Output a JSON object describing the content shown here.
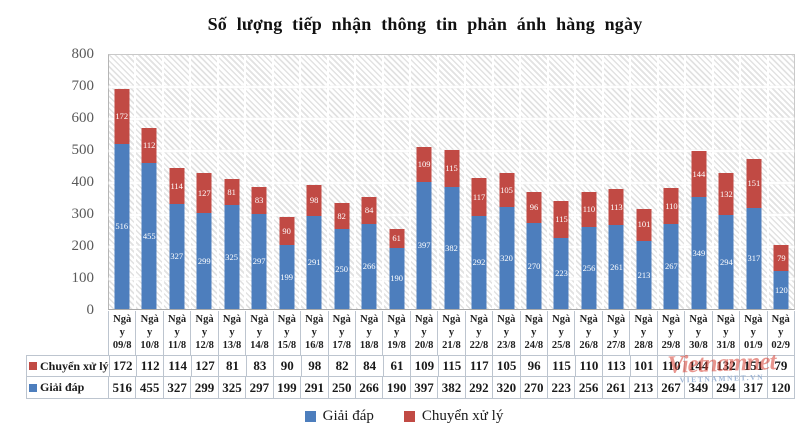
{
  "title": "Số lượng tiếp nhận thông tin phản ánh hàng ngày",
  "colors": {
    "giai_dap": "#4D7EBD",
    "chuyen_xu_ly": "#C14A44",
    "grid_border": "#bdc5cf",
    "axis_text": "#595959"
  },
  "chart_data": {
    "type": "bar",
    "stacked": true,
    "title": "Số lượng tiếp nhận thông tin phản ánh hàng ngày",
    "xlabel": "",
    "ylabel": "",
    "ylim": [
      0,
      800
    ],
    "ytick_step": 100,
    "grid": true,
    "legend_position": "bottom",
    "categories": [
      "Ngày 09/8",
      "Ngày 10/8",
      "Ngày 11/8",
      "Ngày 12/8",
      "Ngày 13/8",
      "Ngày 14/8",
      "Ngày 15/8",
      "Ngày 16/8",
      "Ngày 17/8",
      "Ngày 18/8",
      "Ngày 19/8",
      "Ngày 20/8",
      "Ngày 21/8",
      "Ngày 22/8",
      "Ngày 23/8",
      "Ngày 24/8",
      "Ngày 25/8",
      "Ngày 26/8",
      "Ngày 27/8",
      "Ngày 28/8",
      "Ngày 29/8",
      "Ngày 30/8",
      "Ngày 31/8",
      "Ngày 01/9",
      "Ngày 02/9"
    ],
    "series": [
      {
        "name": "Giải đáp",
        "color": "#4D7EBD",
        "values": [
          516,
          455,
          327,
          299,
          325,
          297,
          199,
          291,
          250,
          266,
          190,
          397,
          382,
          292,
          320,
          270,
          223,
          256,
          261,
          213,
          267,
          349,
          294,
          317,
          120
        ]
      },
      {
        "name": "Chuyển xử lý",
        "color": "#C14A44",
        "values": [
          172,
          112,
          114,
          127,
          81,
          83,
          90,
          98,
          82,
          84,
          61,
          109,
          115,
          117,
          105,
          96,
          115,
          110,
          113,
          101,
          110,
          144,
          132,
          151,
          79
        ]
      }
    ]
  },
  "y_axis": {
    "tick_labels": [
      "800",
      "700",
      "600",
      "500",
      "400",
      "300",
      "200",
      "100",
      "0"
    ]
  },
  "x_axis": {
    "prefix_lines": [
      "Ngà",
      "y"
    ],
    "dates": [
      "09/8",
      "10/8",
      "11/8",
      "12/8",
      "13/8",
      "14/8",
      "15/8",
      "16/8",
      "17/8",
      "18/8",
      "19/8",
      "20/8",
      "21/8",
      "22/8",
      "23/8",
      "24/8",
      "25/8",
      "26/8",
      "27/8",
      "28/8",
      "29/8",
      "30/8",
      "31/8",
      "01/9",
      "02/9"
    ]
  },
  "table": {
    "rows": [
      {
        "label": "Chuyển xử lý",
        "series_index": 1
      },
      {
        "label": "Giải đáp",
        "series_index": 0
      }
    ]
  },
  "legend": {
    "items": [
      {
        "label": "Giải đáp",
        "color": "#4D7EBD"
      },
      {
        "label": "Chuyển xử lý",
        "color": "#C14A44"
      }
    ]
  },
  "watermark": {
    "text": "Vietnamnet",
    "subtext": "VIETNAMNET.VN"
  }
}
